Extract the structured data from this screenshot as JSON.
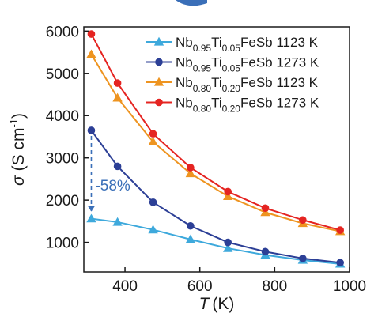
{
  "chart_data": {
    "type": "line",
    "title": "",
    "xlabel": {
      "symbol": "T",
      "unit": "(K)"
    },
    "ylabel": {
      "symbol": "σ",
      "unit_pre": "(S cm",
      "unit_exp": "-1",
      "unit_post": ")"
    },
    "xlim": [
      290,
      1000
    ],
    "ylim": [
      300,
      6100
    ],
    "xticks": [
      400,
      600,
      800,
      1000
    ],
    "yticks": [
      1000,
      2000,
      3000,
      4000,
      5000,
      6000
    ],
    "grid": false,
    "legend_position": "top-right",
    "x": [
      310,
      380,
      475,
      575,
      675,
      775,
      875,
      975
    ],
    "series": [
      {
        "label": {
          "a": "Nb",
          "as": "0.95",
          "b": "Ti",
          "bs": "0.05",
          "c": "FeSb 1123 K"
        },
        "marker": "triangle",
        "color": "#3ea9dc",
        "values": [
          1560,
          1480,
          1300,
          1070,
          860,
          700,
          580,
          490
        ]
      },
      {
        "label": {
          "a": "Nb",
          "as": "0.95",
          "b": "Ti",
          "bs": "0.05",
          "c": "FeSb 1273 K"
        },
        "marker": "circle",
        "color": "#2c3f96",
        "values": [
          3650,
          2800,
          1950,
          1390,
          1000,
          780,
          620,
          520
        ]
      },
      {
        "label": {
          "a": "Nb",
          "as": "0.80",
          "b": "Ti",
          "bs": "0.20",
          "c": "FeSb 1123 K"
        },
        "marker": "triangle",
        "color": "#ee9420",
        "values": [
          5450,
          4420,
          3380,
          2630,
          2090,
          1710,
          1450,
          1260
        ]
      },
      {
        "label": {
          "a": "Nb",
          "as": "0.80",
          "b": "Ti",
          "bs": "0.20",
          "c": "FeSb 1273 K"
        },
        "marker": "circle",
        "color": "#e52421",
        "values": [
          5930,
          4770,
          3570,
          2770,
          2200,
          1810,
          1530,
          1290
        ]
      }
    ],
    "annotations": [
      {
        "text": "-58%",
        "x": 310,
        "from_y": 3650,
        "to_y": 1560,
        "color": "#3a6fb8"
      }
    ]
  },
  "decoration": {
    "top_arrow_color": "#3a6fb8"
  }
}
